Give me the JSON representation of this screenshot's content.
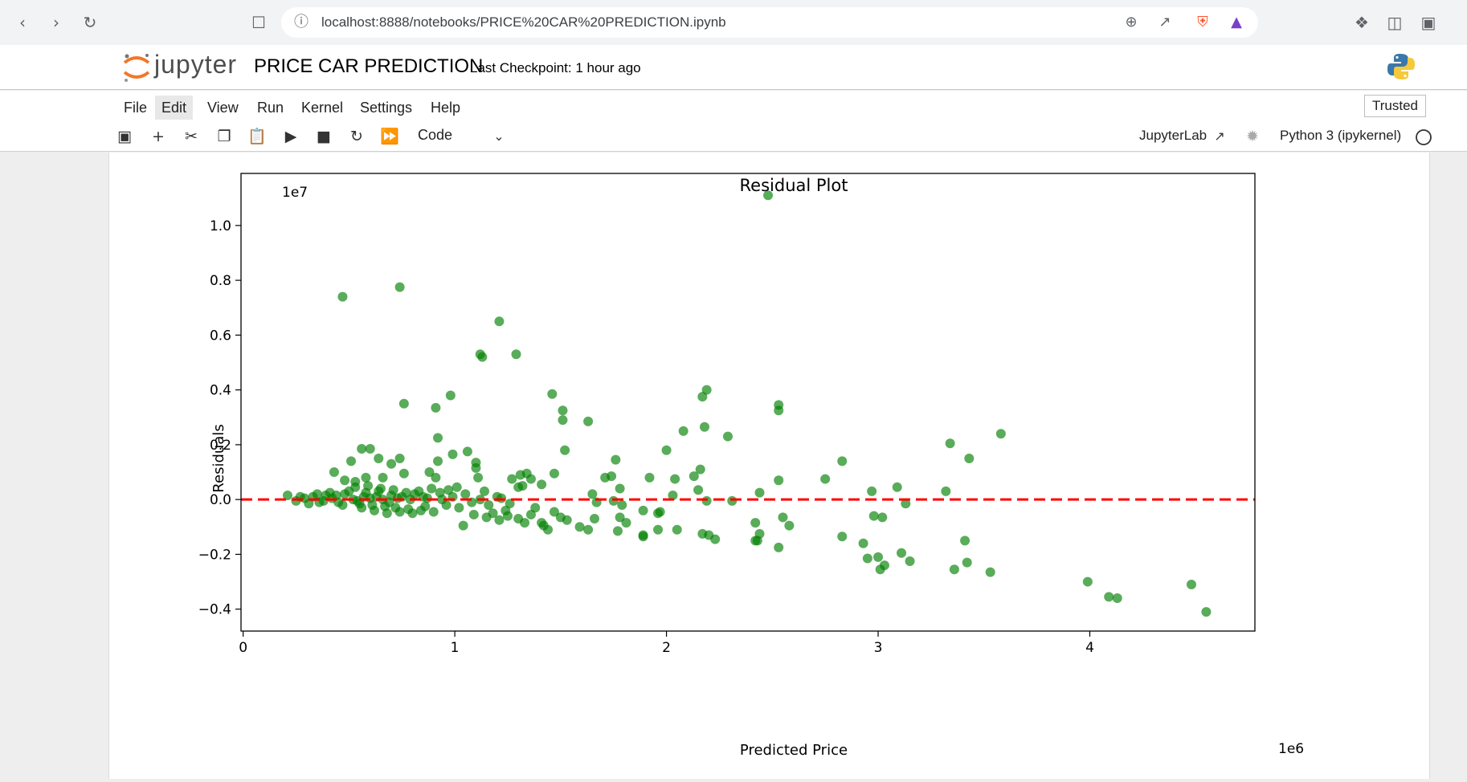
{
  "browser": {
    "url": "localhost:8888/notebooks/PRICE%20CAR%20PREDICTION.ipynb"
  },
  "header": {
    "logo_text": "jupyter",
    "notebook_title": "PRICE CAR PREDICTION",
    "checkpoint": "Last Checkpoint: 1 hour ago"
  },
  "menu": {
    "items": [
      "File",
      "Edit",
      "View",
      "Run",
      "Kernel",
      "Settings",
      "Help"
    ],
    "trusted": "Trusted"
  },
  "toolbar": {
    "cell_type": "Code",
    "jupyterlab_link": "JupyterLab",
    "kernel": "Python 3 (ipykernel)"
  },
  "colors": {
    "points": "#008000",
    "zero_line": "#ff0000"
  },
  "chart_data": {
    "type": "scatter",
    "title": "Residual Plot",
    "xlabel": "Predicted Price",
    "ylabel": "Residuals",
    "x_offset_text": "1e6",
    "y_offset_text": "1e7",
    "xlim": [
      -0.01,
      4.78
    ],
    "ylim": [
      -0.48,
      1.19
    ],
    "xticks": [
      0,
      1,
      2,
      3,
      4
    ],
    "xtick_labels": [
      "0",
      "1",
      "2",
      "3",
      "4"
    ],
    "yticks": [
      -0.4,
      -0.2,
      0.0,
      0.2,
      0.4,
      0.6,
      0.8,
      1.0
    ],
    "ytick_labels": [
      "−0.4",
      "−0.2",
      "0.0",
      "0.2",
      "0.4",
      "0.6",
      "0.8",
      "1.0"
    ],
    "reference_line": {
      "y": 0,
      "style": "dashed",
      "color": "#ff0000"
    },
    "points": [
      [
        2.48,
        1.11
      ],
      [
        0.47,
        0.74
      ],
      [
        0.74,
        0.775
      ],
      [
        1.21,
        0.65
      ],
      [
        1.12,
        0.53
      ],
      [
        1.13,
        0.52
      ],
      [
        1.29,
        0.53
      ],
      [
        0.76,
        0.35
      ],
      [
        0.91,
        0.335
      ],
      [
        0.98,
        0.38
      ],
      [
        1.46,
        0.385
      ],
      [
        1.51,
        0.325
      ],
      [
        1.51,
        0.29
      ],
      [
        1.63,
        0.285
      ],
      [
        2.19,
        0.4
      ],
      [
        2.17,
        0.375
      ],
      [
        2.53,
        0.345
      ],
      [
        2.53,
        0.325
      ],
      [
        2.08,
        0.25
      ],
      [
        2.18,
        0.265
      ],
      [
        2.29,
        0.23
      ],
      [
        3.58,
        0.24
      ],
      [
        3.34,
        0.205
      ],
      [
        3.43,
        0.15
      ],
      [
        0.92,
        0.225
      ],
      [
        0.56,
        0.185
      ],
      [
        0.6,
        0.185
      ],
      [
        0.51,
        0.14
      ],
      [
        0.64,
        0.15
      ],
      [
        0.7,
        0.13
      ],
      [
        0.74,
        0.15
      ],
      [
        0.92,
        0.14
      ],
      [
        0.99,
        0.165
      ],
      [
        1.06,
        0.175
      ],
      [
        1.1,
        0.135
      ],
      [
        1.1,
        0.115
      ],
      [
        1.52,
        0.18
      ],
      [
        1.76,
        0.145
      ],
      [
        2.0,
        0.18
      ],
      [
        2.83,
        0.14
      ],
      [
        0.43,
        0.1
      ],
      [
        0.53,
        0.065
      ],
      [
        0.48,
        0.07
      ],
      [
        0.58,
        0.08
      ],
      [
        0.66,
        0.08
      ],
      [
        0.76,
        0.095
      ],
      [
        0.88,
        0.1
      ],
      [
        0.91,
        0.08
      ],
      [
        1.11,
        0.08
      ],
      [
        1.31,
        0.09
      ],
      [
        1.34,
        0.095
      ],
      [
        1.27,
        0.075
      ],
      [
        1.36,
        0.075
      ],
      [
        1.47,
        0.095
      ],
      [
        1.71,
        0.08
      ],
      [
        1.74,
        0.085
      ],
      [
        1.92,
        0.08
      ],
      [
        2.04,
        0.075
      ],
      [
        2.13,
        0.085
      ],
      [
        2.16,
        0.11
      ],
      [
        2.53,
        0.07
      ],
      [
        2.75,
        0.075
      ],
      [
        1.3,
        0.045
      ],
      [
        1.32,
        0.05
      ],
      [
        1.41,
        0.055
      ],
      [
        1.65,
        0.02
      ],
      [
        1.78,
        0.04
      ],
      [
        2.03,
        0.015
      ],
      [
        2.15,
        0.035
      ],
      [
        2.44,
        0.025
      ],
      [
        2.97,
        0.03
      ],
      [
        3.09,
        0.045
      ],
      [
        3.32,
        0.03
      ],
      [
        1.67,
        -0.01
      ],
      [
        1.75,
        -0.005
      ],
      [
        1.79,
        -0.02
      ],
      [
        1.89,
        -0.04
      ],
      [
        1.96,
        -0.05
      ],
      [
        1.97,
        -0.045
      ],
      [
        2.19,
        -0.005
      ],
      [
        2.31,
        -0.005
      ],
      [
        3.13,
        -0.015
      ],
      [
        1.66,
        -0.07
      ],
      [
        1.78,
        -0.065
      ],
      [
        1.81,
        -0.085
      ],
      [
        1.77,
        -0.115
      ],
      [
        1.89,
        -0.135
      ],
      [
        1.89,
        -0.13
      ],
      [
        1.96,
        -0.11
      ],
      [
        2.05,
        -0.11
      ],
      [
        2.17,
        -0.125
      ],
      [
        2.2,
        -0.13
      ],
      [
        2.23,
        -0.145
      ],
      [
        1.53,
        -0.075
      ],
      [
        1.59,
        -0.1
      ],
      [
        1.63,
        -0.11
      ],
      [
        2.42,
        -0.085
      ],
      [
        2.44,
        -0.125
      ],
      [
        2.42,
        -0.15
      ],
      [
        2.43,
        -0.15
      ],
      [
        2.53,
        -0.175
      ],
      [
        2.55,
        -0.065
      ],
      [
        2.58,
        -0.095
      ],
      [
        2.83,
        -0.135
      ],
      [
        2.93,
        -0.16
      ],
      [
        2.95,
        -0.215
      ],
      [
        2.98,
        -0.06
      ],
      [
        3.0,
        -0.21
      ],
      [
        3.01,
        -0.255
      ],
      [
        3.03,
        -0.24
      ],
      [
        3.02,
        -0.065
      ],
      [
        3.11,
        -0.195
      ],
      [
        3.15,
        -0.225
      ],
      [
        3.36,
        -0.255
      ],
      [
        3.41,
        -0.15
      ],
      [
        3.42,
        -0.23
      ],
      [
        3.53,
        -0.265
      ],
      [
        3.99,
        -0.3
      ],
      [
        4.09,
        -0.355
      ],
      [
        4.13,
        -0.36
      ],
      [
        4.48,
        -0.31
      ],
      [
        4.55,
        -0.41
      ],
      [
        1.42,
        -0.095
      ],
      [
        1.44,
        -0.11
      ],
      [
        1.36,
        -0.055
      ],
      [
        1.41,
        -0.085
      ],
      [
        1.04,
        -0.095
      ],
      [
        1.09,
        -0.055
      ],
      [
        1.15,
        -0.065
      ],
      [
        1.21,
        -0.075
      ],
      [
        1.25,
        -0.06
      ],
      [
        1.3,
        -0.07
      ],
      [
        1.33,
        -0.085
      ],
      [
        1.38,
        -0.03
      ],
      [
        1.47,
        -0.045
      ],
      [
        1.5,
        -0.065
      ],
      [
        0.21,
        0.015
      ],
      [
        0.25,
        -0.005
      ],
      [
        0.29,
        0.005
      ],
      [
        0.33,
        0.01
      ],
      [
        0.36,
        -0.01
      ],
      [
        0.39,
        0.015
      ],
      [
        0.42,
        0.005
      ],
      [
        0.45,
        -0.01
      ],
      [
        0.48,
        0.02
      ],
      [
        0.52,
        0.0
      ],
      [
        0.55,
        -0.015
      ],
      [
        0.58,
        0.025
      ],
      [
        0.61,
        -0.02
      ],
      [
        0.64,
        0.03
      ],
      [
        0.67,
        -0.025
      ],
      [
        0.7,
        0.015
      ],
      [
        0.72,
        -0.03
      ],
      [
        0.75,
        0.01
      ],
      [
        0.78,
        -0.035
      ],
      [
        0.81,
        0.02
      ],
      [
        0.84,
        -0.04
      ],
      [
        0.87,
        0.005
      ],
      [
        0.9,
        -0.045
      ],
      [
        0.93,
        0.025
      ],
      [
        0.96,
        -0.02
      ],
      [
        0.99,
        0.01
      ],
      [
        1.02,
        -0.03
      ],
      [
        1.05,
        0.02
      ],
      [
        1.08,
        -0.01
      ],
      [
        1.12,
        0.0
      ],
      [
        1.16,
        -0.02
      ],
      [
        1.2,
        0.01
      ],
      [
        1.24,
        -0.04
      ],
      [
        0.27,
        0.01
      ],
      [
        0.31,
        -0.015
      ],
      [
        0.35,
        0.02
      ],
      [
        0.38,
        -0.005
      ],
      [
        0.41,
        0.025
      ],
      [
        0.44,
        0.015
      ],
      [
        0.47,
        -0.02
      ],
      [
        0.5,
        0.03
      ],
      [
        0.53,
        0.045
      ],
      [
        0.56,
        -0.03
      ],
      [
        0.59,
        0.05
      ],
      [
        0.62,
        -0.04
      ],
      [
        0.65,
        0.04
      ],
      [
        0.68,
        -0.05
      ],
      [
        0.71,
        0.035
      ],
      [
        0.74,
        -0.045
      ],
      [
        0.77,
        0.025
      ],
      [
        0.8,
        -0.05
      ],
      [
        0.83,
        0.03
      ],
      [
        0.86,
        -0.025
      ],
      [
        0.89,
        0.04
      ],
      [
        0.63,
        0.01
      ],
      [
        0.66,
        0.0
      ],
      [
        0.69,
        -0.01
      ],
      [
        0.6,
        0.005
      ],
      [
        0.57,
        0.01
      ],
      [
        0.54,
        -0.005
      ],
      [
        0.73,
        0.005
      ],
      [
        0.79,
        0.0
      ],
      [
        0.85,
        0.01
      ],
      [
        0.94,
        0.0
      ],
      [
        0.97,
        0.035
      ],
      [
        1.01,
        0.045
      ],
      [
        1.14,
        0.03
      ],
      [
        1.18,
        -0.05
      ],
      [
        1.22,
        0.005
      ],
      [
        1.26,
        -0.015
      ]
    ]
  }
}
